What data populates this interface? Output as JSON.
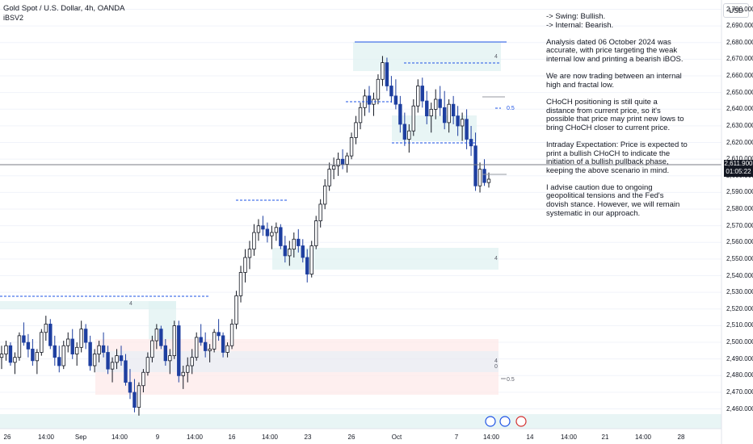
{
  "header": {
    "symbol": "Gold Spot / U.S. Dollar, 4h, OANDA",
    "indicator": "iBSV2",
    "currency": "USD"
  },
  "notes": [
    "-> Swing:  Bullish.",
    "-> Internal:  Bearish.",
    "Analysis dated 06 October 2024 was accurate, with price targeting the weak internal low and printing a bearish iBOS.",
    "We are now trading between an internal high and fractal low.",
    "CHoCH positioning is still quite a distance from current price, so it's possible that price may print new lows to bring CHoCH closer to current price.",
    "Intraday Expectation: Price is expected to print a bullish CHoCH to indicate the initiation of a bullish pullback phase, keeping the above scenario in mind.",
    "I advise caution due to ongoing geopolitical tensions and the Fed's dovish stance. However, we will remain systematic in our approach."
  ],
  "chart_data": {
    "type": "candlestick",
    "y_ticks": [
      "2,700.000",
      "2,690.000",
      "2,680.000",
      "2,670.000",
      "2,660.000",
      "2,650.000",
      "2,640.000",
      "2,630.000",
      "2,620.000",
      "2,610.000",
      "2,600.000",
      "2,590.000",
      "2,580.000",
      "2,570.000",
      "2,560.000",
      "2,550.000",
      "2,540.000",
      "2,530.000",
      "2,520.000",
      "2,510.000",
      "2,500.000",
      "2,490.000",
      "2,480.000",
      "2,470.000",
      "2,460.000"
    ],
    "ylim": [
      2457,
      2703
    ],
    "x_ticks": [
      "26",
      "14:00",
      "Sep",
      "14:00",
      "9",
      "14:00",
      "16",
      "14:00",
      "23",
      "26",
      "Oct",
      "7",
      "14:00",
      "14",
      "14:00",
      "21",
      "14:00",
      "28"
    ],
    "last_price": "2,611.900",
    "countdown": "01:05:22",
    "zone_labels": [
      "4",
      "4",
      "4",
      "4",
      "0",
      "0.5",
      "0.5"
    ],
    "candles": [
      [
        2505,
        2512,
        2498,
        2507
      ],
      [
        2507,
        2515,
        2503,
        2512
      ],
      [
        2512,
        2514,
        2500,
        2502
      ],
      [
        2502,
        2508,
        2495,
        2505
      ],
      [
        2505,
        2520,
        2503,
        2518
      ],
      [
        2518,
        2526,
        2512,
        2514
      ],
      [
        2514,
        2519,
        2505,
        2510
      ],
      [
        2510,
        2516,
        2500,
        2503
      ],
      [
        2503,
        2510,
        2495,
        2508
      ],
      [
        2508,
        2522,
        2506,
        2520
      ],
      [
        2520,
        2530,
        2515,
        2525
      ],
      [
        2525,
        2528,
        2510,
        2512
      ],
      [
        2512,
        2518,
        2500,
        2505
      ],
      [
        2505,
        2512,
        2496,
        2500
      ],
      [
        2500,
        2515,
        2498,
        2512
      ],
      [
        2512,
        2520,
        2508,
        2516
      ],
      [
        2516,
        2522,
        2504,
        2507
      ],
      [
        2507,
        2514,
        2500,
        2511
      ],
      [
        2511,
        2527,
        2508,
        2522
      ],
      [
        2522,
        2525,
        2510,
        2514
      ],
      [
        2514,
        2518,
        2497,
        2500
      ],
      [
        2500,
        2510,
        2496,
        2507
      ],
      [
        2507,
        2515,
        2502,
        2512
      ],
      [
        2512,
        2520,
        2505,
        2508
      ],
      [
        2508,
        2512,
        2495,
        2498
      ],
      [
        2498,
        2505,
        2490,
        2502
      ],
      [
        2502,
        2510,
        2498,
        2506
      ],
      [
        2506,
        2512,
        2500,
        2503
      ],
      [
        2503,
        2507,
        2488,
        2490
      ],
      [
        2490,
        2498,
        2480,
        2484
      ],
      [
        2484,
        2492,
        2472,
        2475
      ],
      [
        2475,
        2490,
        2470,
        2488
      ],
      [
        2488,
        2498,
        2484,
        2496
      ],
      [
        2496,
        2508,
        2494,
        2505
      ],
      [
        2505,
        2518,
        2502,
        2515
      ],
      [
        2515,
        2525,
        2510,
        2522
      ],
      [
        2522,
        2524,
        2510,
        2512
      ],
      [
        2512,
        2516,
        2500,
        2503
      ],
      [
        2503,
        2510,
        2495,
        2506
      ],
      [
        2506,
        2527,
        2504,
        2524
      ],
      [
        2524,
        2527,
        2490,
        2494
      ],
      [
        2494,
        2500,
        2486,
        2496
      ],
      [
        2496,
        2505,
        2490,
        2500
      ],
      [
        2500,
        2510,
        2495,
        2505
      ],
      [
        2505,
        2520,
        2503,
        2517
      ],
      [
        2517,
        2525,
        2512,
        2514
      ],
      [
        2514,
        2520,
        2505,
        2509
      ],
      [
        2509,
        2513,
        2502,
        2510
      ],
      [
        2510,
        2522,
        2508,
        2520
      ],
      [
        2520,
        2528,
        2515,
        2518
      ],
      [
        2518,
        2520,
        2505,
        2508
      ],
      [
        2508,
        2514,
        2505,
        2512
      ],
      [
        2512,
        2528,
        2510,
        2525
      ],
      [
        2525,
        2545,
        2522,
        2542
      ],
      [
        2542,
        2560,
        2538,
        2556
      ],
      [
        2556,
        2570,
        2550,
        2565
      ],
      [
        2565,
        2575,
        2558,
        2570
      ],
      [
        2570,
        2585,
        2566,
        2580
      ],
      [
        2580,
        2588,
        2575,
        2584
      ],
      [
        2584,
        2590,
        2578,
        2582
      ],
      [
        2582,
        2586,
        2574,
        2578
      ],
      [
        2578,
        2584,
        2570,
        2580
      ],
      [
        2580,
        2586,
        2575,
        2583
      ],
      [
        2583,
        2585,
        2570,
        2572
      ],
      [
        2572,
        2578,
        2562,
        2566
      ],
      [
        2566,
        2575,
        2560,
        2570
      ],
      [
        2570,
        2580,
        2565,
        2576
      ],
      [
        2576,
        2582,
        2568,
        2572
      ],
      [
        2572,
        2576,
        2562,
        2565
      ],
      [
        2565,
        2570,
        2550,
        2555
      ],
      [
        2555,
        2575,
        2553,
        2572
      ],
      [
        2572,
        2590,
        2570,
        2587
      ],
      [
        2587,
        2600,
        2583,
        2597
      ],
      [
        2597,
        2612,
        2594,
        2608
      ],
      [
        2608,
        2622,
        2605,
        2618
      ],
      [
        2618,
        2625,
        2612,
        2620
      ],
      [
        2620,
        2628,
        2614,
        2624
      ],
      [
        2624,
        2630,
        2618,
        2621
      ],
      [
        2621,
        2628,
        2616,
        2626
      ],
      [
        2626,
        2640,
        2624,
        2637
      ],
      [
        2637,
        2650,
        2633,
        2646
      ],
      [
        2646,
        2658,
        2642,
        2655
      ],
      [
        2655,
        2666,
        2650,
        2662
      ],
      [
        2662,
        2668,
        2652,
        2657
      ],
      [
        2657,
        2664,
        2650,
        2660
      ],
      [
        2660,
        2675,
        2657,
        2672
      ],
      [
        2672,
        2686,
        2668,
        2682
      ],
      [
        2682,
        2685,
        2665,
        2668
      ],
      [
        2668,
        2674,
        2658,
        2662
      ],
      [
        2662,
        2672,
        2654,
        2657
      ],
      [
        2657,
        2662,
        2640,
        2645
      ],
      [
        2645,
        2652,
        2632,
        2636
      ],
      [
        2636,
        2645,
        2628,
        2641
      ],
      [
        2641,
        2660,
        2638,
        2656
      ],
      [
        2656,
        2672,
        2652,
        2668
      ],
      [
        2668,
        2673,
        2655,
        2659
      ],
      [
        2659,
        2665,
        2645,
        2650
      ],
      [
        2650,
        2658,
        2640,
        2654
      ],
      [
        2654,
        2666,
        2648,
        2660
      ],
      [
        2660,
        2668,
        2650,
        2655
      ],
      [
        2655,
        2665,
        2642,
        2646
      ],
      [
        2646,
        2660,
        2640,
        2657
      ],
      [
        2657,
        2662,
        2645,
        2650
      ],
      [
        2650,
        2656,
        2638,
        2644
      ],
      [
        2644,
        2652,
        2635,
        2648
      ],
      [
        2648,
        2654,
        2630,
        2636
      ],
      [
        2636,
        2644,
        2626,
        2632
      ],
      [
        2632,
        2640,
        2605,
        2608
      ],
      [
        2608,
        2622,
        2604,
        2618
      ],
      [
        2618,
        2624,
        2608,
        2610
      ],
      [
        2610,
        2616,
        2607,
        2612
      ]
    ]
  }
}
